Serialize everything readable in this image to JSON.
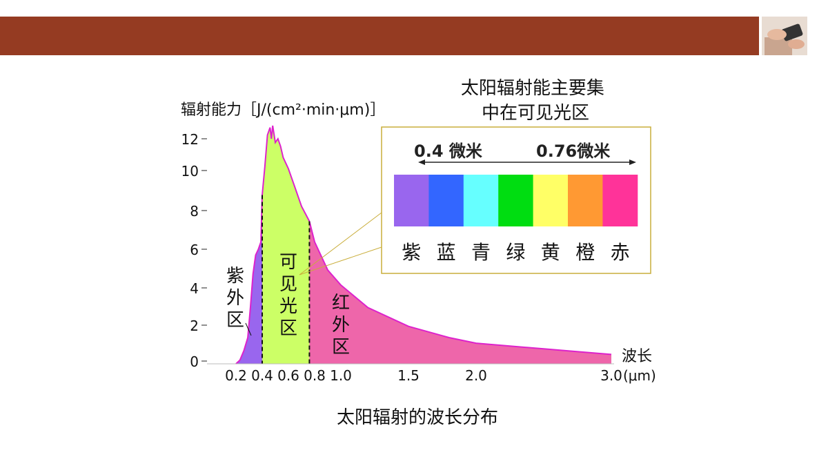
{
  "caption": "太阳辐射的波长分布",
  "callout_title": [
    "太阳辐射能主要集",
    "中在可见光区"
  ],
  "spectrum": {
    "left_label": "0.4 微米",
    "right_label": "0.76微米",
    "colors": [
      {
        "name": "紫",
        "hex": "#9966ee"
      },
      {
        "name": "蓝",
        "hex": "#3366ff"
      },
      {
        "name": "青",
        "hex": "#66ffff"
      },
      {
        "name": "绿",
        "hex": "#00dd11"
      },
      {
        "name": "黄",
        "hex": "#ffff66"
      },
      {
        "name": "橙",
        "hex": "#ff9933"
      },
      {
        "name": "赤",
        "hex": "#ff3399"
      }
    ]
  },
  "chart_data": {
    "type": "area",
    "ylabel": "辐射能力［J/(cm²·min·μm)］",
    "xlabel": "波长",
    "x_unit": "(μm)",
    "xlim": [
      0.2,
      3.0
    ],
    "ylim": [
      0,
      12
    ],
    "x_ticks": [
      "0.2",
      "0.4",
      "0.6",
      "0.8",
      "1.0",
      "1.5",
      "2.0",
      "3.0"
    ],
    "y_ticks": [
      "0",
      "2",
      "4",
      "6",
      "8",
      "10",
      "12"
    ],
    "regions": [
      {
        "label": "紫外区",
        "from": 0.2,
        "to": 0.4,
        "color": "#9966ee"
      },
      {
        "label": "可见光区",
        "from": 0.4,
        "to": 0.76,
        "color": "#ccff66"
      },
      {
        "label": "红外区",
        "from": 0.76,
        "to": 3.0,
        "color": "#ee66aa"
      }
    ],
    "dividers": [
      0.4,
      0.76
    ],
    "x": [
      0.2,
      0.23,
      0.26,
      0.29,
      0.31,
      0.33,
      0.35,
      0.37,
      0.39,
      0.4,
      0.42,
      0.44,
      0.46,
      0.47,
      0.48,
      0.5,
      0.52,
      0.54,
      0.56,
      0.6,
      0.65,
      0.7,
      0.76,
      0.8,
      0.9,
      1.0,
      1.2,
      1.5,
      1.8,
      2.0,
      2.5,
      3.0
    ],
    "y": [
      0.0,
      0.2,
      0.7,
      1.4,
      3.0,
      4.8,
      5.8,
      6.1,
      6.5,
      9.0,
      10.5,
      12.2,
      12.6,
      12.0,
      12.7,
      11.8,
      12.0,
      11.6,
      11.0,
      10.4,
      9.4,
      8.4,
      7.6,
      6.5,
      5.0,
      4.2,
      3.0,
      2.0,
      1.4,
      1.1,
      0.8,
      0.5
    ]
  }
}
